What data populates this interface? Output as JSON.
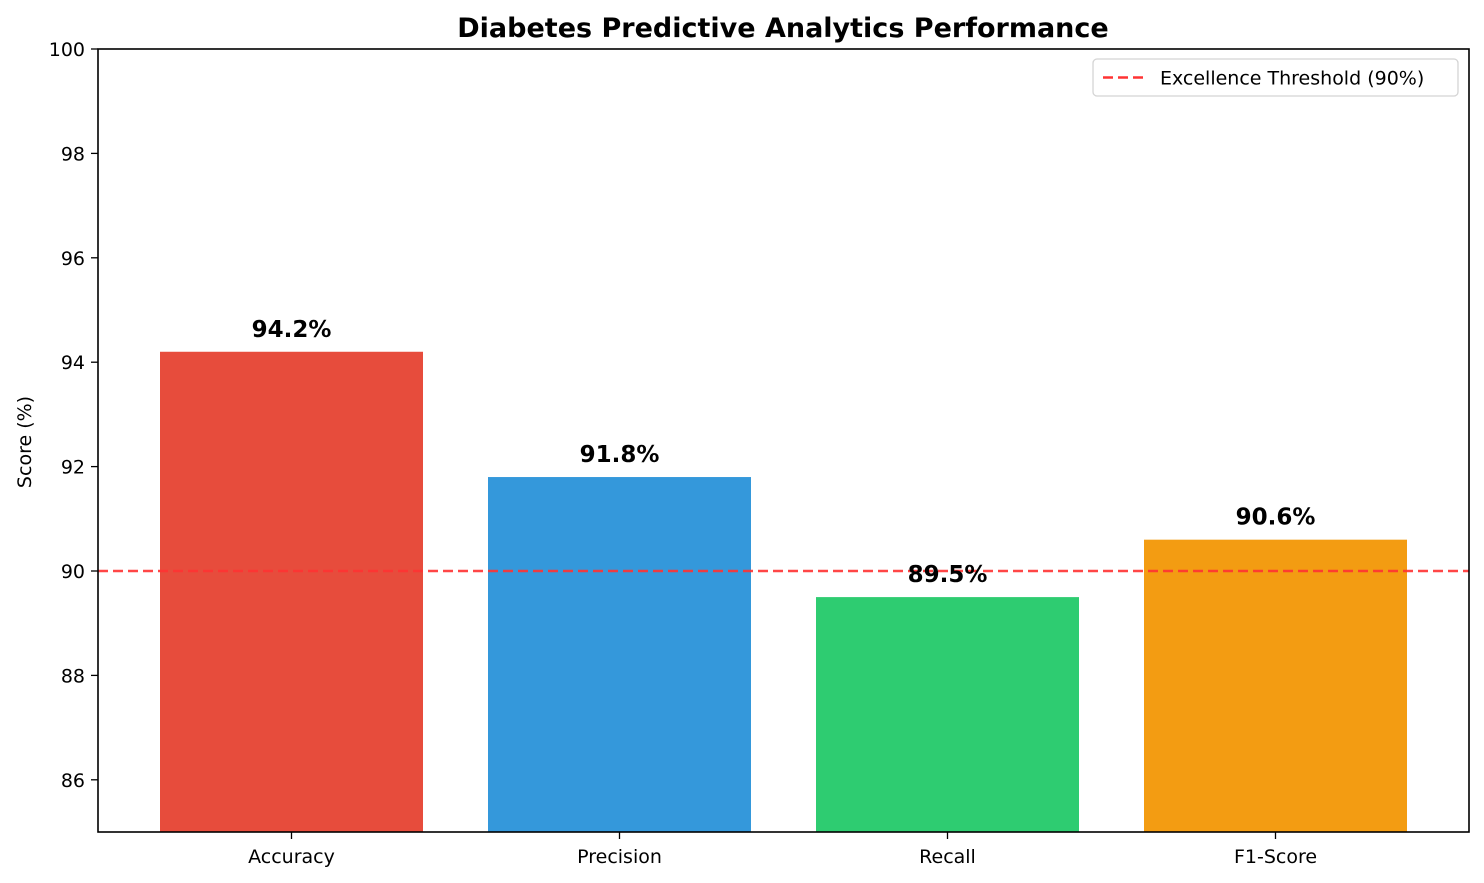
{
  "chart_data": {
    "type": "bar",
    "title": "Diabetes Predictive Analytics Performance",
    "xlabel": "",
    "ylabel": "Score (%)",
    "categories": [
      "Accuracy",
      "Precision",
      "Recall",
      "F1-Score"
    ],
    "values": [
      94.2,
      91.8,
      89.5,
      90.6
    ],
    "value_labels": [
      "94.2%",
      "91.8%",
      "89.5%",
      "90.6%"
    ],
    "colors": [
      "#e74c3c",
      "#3498db",
      "#2ecc71",
      "#f39c12"
    ],
    "ylim": [
      85,
      100
    ],
    "yticks": [
      86,
      88,
      90,
      92,
      94,
      96,
      98,
      100
    ],
    "grid": false,
    "threshold": {
      "value": 90,
      "label": "Excellence Threshold (90%)",
      "color": "#ff3333",
      "style": "dashed"
    },
    "legend": {
      "position": "top-right",
      "entries": [
        "Excellence Threshold (90%)"
      ]
    }
  }
}
